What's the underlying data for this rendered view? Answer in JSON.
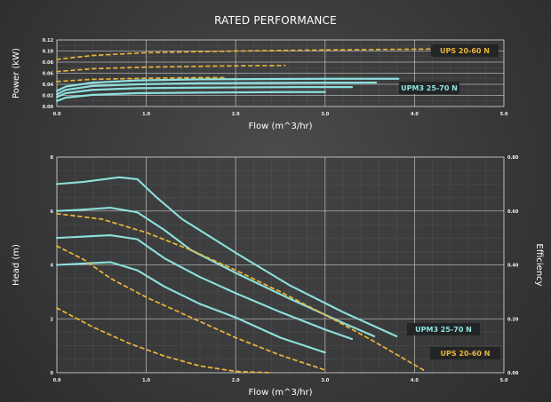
{
  "chart_data": [
    {
      "id": "power",
      "type": "line",
      "title": "RATED PERFORMANCE",
      "xlabel": "Flow (m^3/hr)",
      "ylabel": "Power (kW)",
      "xlim": [
        0,
        5
      ],
      "ylim": [
        0,
        0.12
      ],
      "xticks": [
        "0.0",
        "1.0",
        "2.0",
        "3.0",
        "4.0",
        "5.0"
      ],
      "yticks": [
        "0.00",
        "0.02",
        "0.04",
        "0.06",
        "0.08",
        "0.10",
        "0.12"
      ],
      "colors": {
        "upm3": "#8fe3df",
        "ups": "#e8b53a"
      },
      "series": [
        {
          "group": "UPM3 25-70 N",
          "style": "solid",
          "x": [
            0.0,
            0.1,
            0.4,
            0.9,
            1.6,
            3.0,
            3.82
          ],
          "y": [
            0.028,
            0.036,
            0.043,
            0.047,
            0.049,
            0.05,
            0.05
          ]
        },
        {
          "group": "UPM3 25-70 N",
          "style": "solid",
          "x": [
            0.0,
            0.1,
            0.4,
            0.9,
            1.6,
            3.0,
            3.57
          ],
          "y": [
            0.022,
            0.03,
            0.037,
            0.04,
            0.042,
            0.043,
            0.043
          ]
        },
        {
          "group": "UPM3 25-70 N",
          "style": "solid",
          "x": [
            0.0,
            0.1,
            0.4,
            0.9,
            1.6,
            2.7,
            3.3
          ],
          "y": [
            0.017,
            0.024,
            0.03,
            0.033,
            0.034,
            0.035,
            0.035
          ]
        },
        {
          "group": "UPM3 25-70 N",
          "style": "solid",
          "x": [
            0.0,
            0.1,
            0.4,
            0.9,
            1.6,
            2.5,
            3.0
          ],
          "y": [
            0.01,
            0.016,
            0.021,
            0.024,
            0.025,
            0.026,
            0.026
          ]
        },
        {
          "group": "UPS 20-60 N",
          "style": "dashed",
          "x": [
            0.0,
            0.4,
            1.0,
            2.0,
            3.0,
            4.5
          ],
          "y": [
            0.085,
            0.092,
            0.097,
            0.1,
            0.102,
            0.104
          ]
        },
        {
          "group": "UPS 20-60 N",
          "style": "dashed",
          "x": [
            0.0,
            0.4,
            1.0,
            1.8,
            2.55
          ],
          "y": [
            0.063,
            0.068,
            0.071,
            0.073,
            0.074
          ]
        },
        {
          "group": "UPS 20-60 N",
          "style": "dashed",
          "x": [
            0.0,
            0.4,
            1.0,
            1.6,
            1.9
          ],
          "y": [
            0.045,
            0.049,
            0.051,
            0.052,
            0.052
          ]
        }
      ],
      "legend": [
        {
          "label": "UPS 20-60 N",
          "color": "#e8b53a"
        },
        {
          "label": "UPM3 25-70 N",
          "color": "#8fe3df"
        }
      ]
    },
    {
      "id": "head",
      "type": "line",
      "xlabel": "Flow (m^3/hr)",
      "ylabel": "Head (m)",
      "y2label": "Efficiency",
      "xlim": [
        0,
        5
      ],
      "ylim": [
        0,
        8
      ],
      "y2lim": [
        0,
        0.8
      ],
      "xticks": [
        "0.0",
        "1.0",
        "2.0",
        "3.0",
        "4.0",
        "5.0"
      ],
      "yticks": [
        "0",
        "2",
        "4",
        "6",
        "8"
      ],
      "y2ticks": [
        "0.00",
        "0.20",
        "0.40",
        "0.60",
        "0.80"
      ],
      "colors": {
        "upm3": "#8fe3df",
        "ups": "#e8b53a"
      },
      "series": [
        {
          "group": "UPM3 25-70 N",
          "style": "solid",
          "x": [
            0.0,
            0.3,
            0.7,
            0.9,
            1.1,
            1.4,
            2.0,
            2.6,
            3.2,
            3.8
          ],
          "y": [
            7.0,
            7.08,
            7.25,
            7.18,
            6.55,
            5.7,
            4.45,
            3.25,
            2.25,
            1.35
          ]
        },
        {
          "group": "UPM3 25-70 N",
          "style": "solid",
          "x": [
            0.0,
            0.3,
            0.6,
            0.9,
            1.2,
            1.5,
            2.0,
            2.6,
            3.2,
            3.55
          ],
          "y": [
            6.0,
            6.05,
            6.12,
            5.95,
            5.3,
            4.55,
            3.7,
            2.75,
            1.85,
            1.35
          ]
        },
        {
          "group": "UPM3 25-70 N",
          "style": "solid",
          "x": [
            0.0,
            0.3,
            0.6,
            0.9,
            1.2,
            1.6,
            2.0,
            2.5,
            3.0,
            3.3
          ],
          "y": [
            5.0,
            5.05,
            5.1,
            4.95,
            4.25,
            3.55,
            2.95,
            2.25,
            1.6,
            1.25
          ]
        },
        {
          "group": "UPM3 25-70 N",
          "style": "solid",
          "x": [
            0.0,
            0.3,
            0.6,
            0.9,
            1.2,
            1.6,
            2.0,
            2.5,
            3.0
          ],
          "y": [
            4.0,
            4.05,
            4.1,
            3.8,
            3.2,
            2.55,
            2.05,
            1.3,
            0.75
          ]
        },
        {
          "group": "UPS 20-60 N",
          "style": "dashed",
          "x": [
            0.0,
            0.5,
            1.0,
            1.5,
            2.0,
            2.5,
            3.0,
            3.5,
            4.1
          ],
          "y": [
            5.9,
            5.7,
            5.2,
            4.55,
            3.8,
            3.0,
            2.15,
            1.25,
            0.1
          ]
        },
        {
          "group": "UPS 20-60 N",
          "style": "dashed",
          "x": [
            0.0,
            0.3,
            0.6,
            1.0,
            1.5,
            2.0,
            2.5,
            3.0
          ],
          "y": [
            4.7,
            4.2,
            3.5,
            2.8,
            2.05,
            1.3,
            0.65,
            0.1
          ]
        },
        {
          "group": "UPS 20-60 N",
          "style": "dashed",
          "x": [
            0.0,
            0.4,
            0.8,
            1.2,
            1.6,
            2.0,
            2.4
          ],
          "y": [
            2.4,
            1.7,
            1.1,
            0.62,
            0.25,
            0.05,
            0.0
          ]
        }
      ],
      "legend": [
        {
          "label": "UPM3 25-70 N",
          "color": "#8fe3df"
        },
        {
          "label": "UPS 20-60 N",
          "color": "#e8b53a"
        }
      ]
    }
  ]
}
